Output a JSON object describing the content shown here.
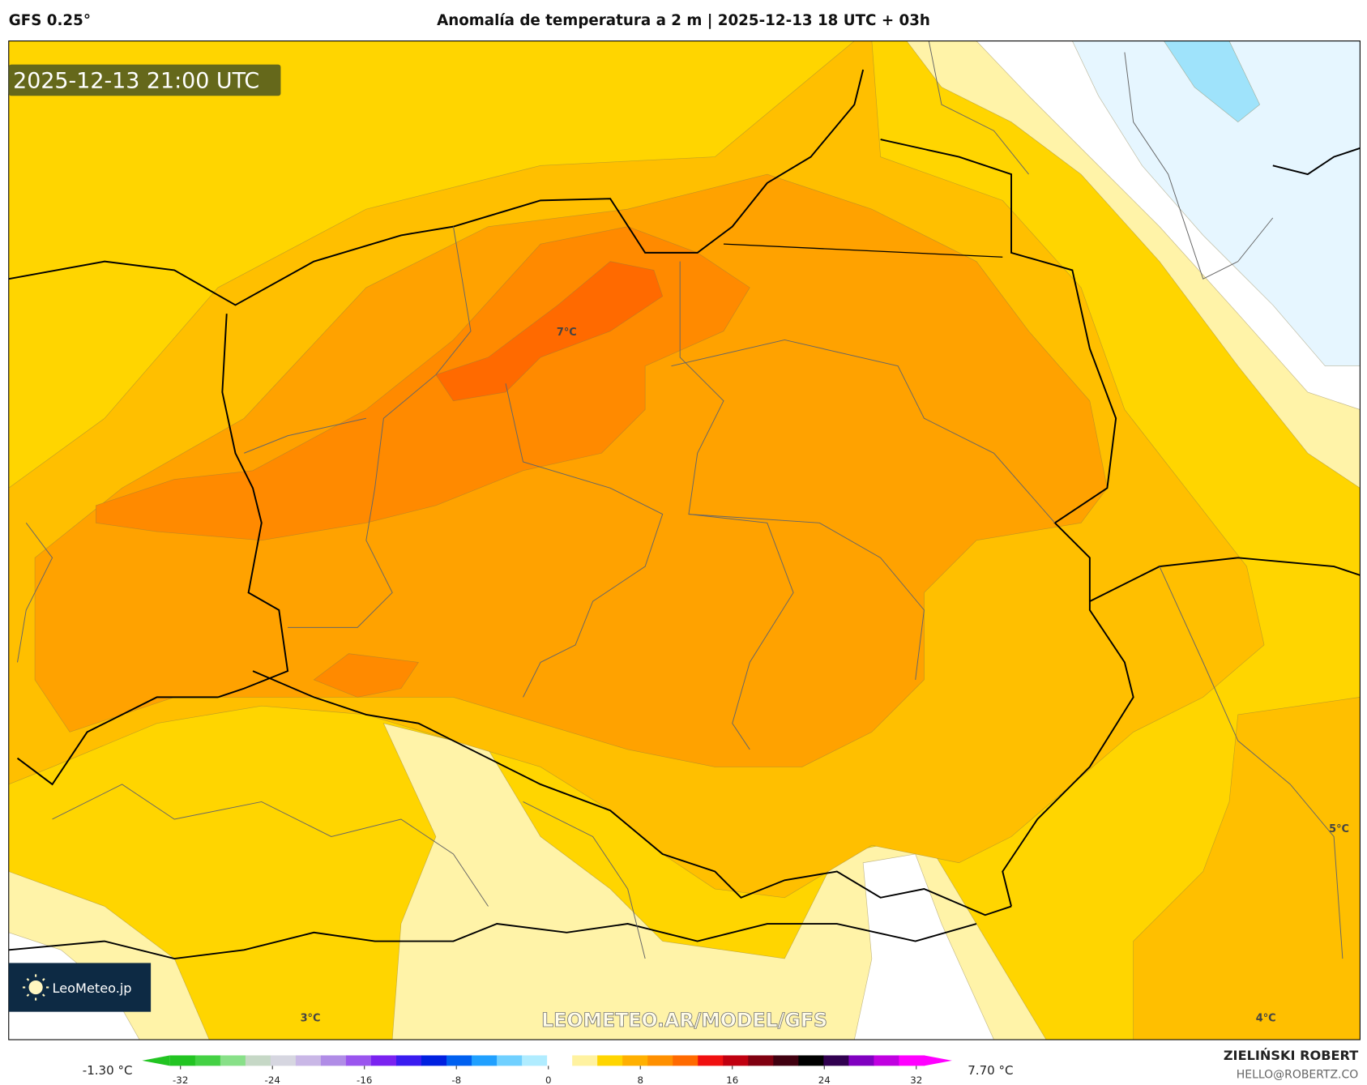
{
  "header": {
    "model": "GFS 0.25°",
    "title": "Anomalía de temperatura a 2 m | 2025-12-13 18 UTC + 03h"
  },
  "map": {
    "valid_time": "2025-12-13 21:00 UTC",
    "watermark": "LEOMETEO.AR/MODEL/GFS",
    "logo_text": "LeoMeteo.jp",
    "labels": [
      "7°C",
      "5°C",
      "3°C",
      "4°C"
    ],
    "colors": {
      "yellow": "#ffd500",
      "light_orange": "#ffbf00",
      "orange": "#ffa200",
      "dark_orange": "#ff8a00",
      "red_orange": "#ff6a00",
      "pale": "#fff3a8",
      "white": "#ffffff",
      "light_blue": "#e6f6ff",
      "cyan": "#9fe3fb"
    }
  },
  "colorbar": {
    "min_label": "-1.30 °C",
    "max_label": "7.70 °C",
    "ticks": [
      "-32",
      "-24",
      "-16",
      "-8",
      "0",
      "8",
      "16",
      "24",
      "32"
    ],
    "colors": [
      "#22c422",
      "#44d144",
      "#88e088",
      "#c6d8c6",
      "#d6d6e0",
      "#c9b7e6",
      "#b08ce6",
      "#9a55ee",
      "#7a22f0",
      "#3a1cf0",
      "#0020e0",
      "#0060f0",
      "#20a0ff",
      "#70d0ff",
      "#b0ecff",
      "#ffffff",
      "#fff2a0",
      "#ffd500",
      "#ffb000",
      "#ff9000",
      "#ff6a00",
      "#f01010",
      "#c00010",
      "#800010",
      "#400010",
      "#000000",
      "#300050",
      "#8000c0",
      "#c000e0",
      "#ff00ff"
    ]
  },
  "credits": {
    "author": "ZIELIŃSKI ROBERT",
    "email": "HELLO@ROBERTZ.CO"
  }
}
